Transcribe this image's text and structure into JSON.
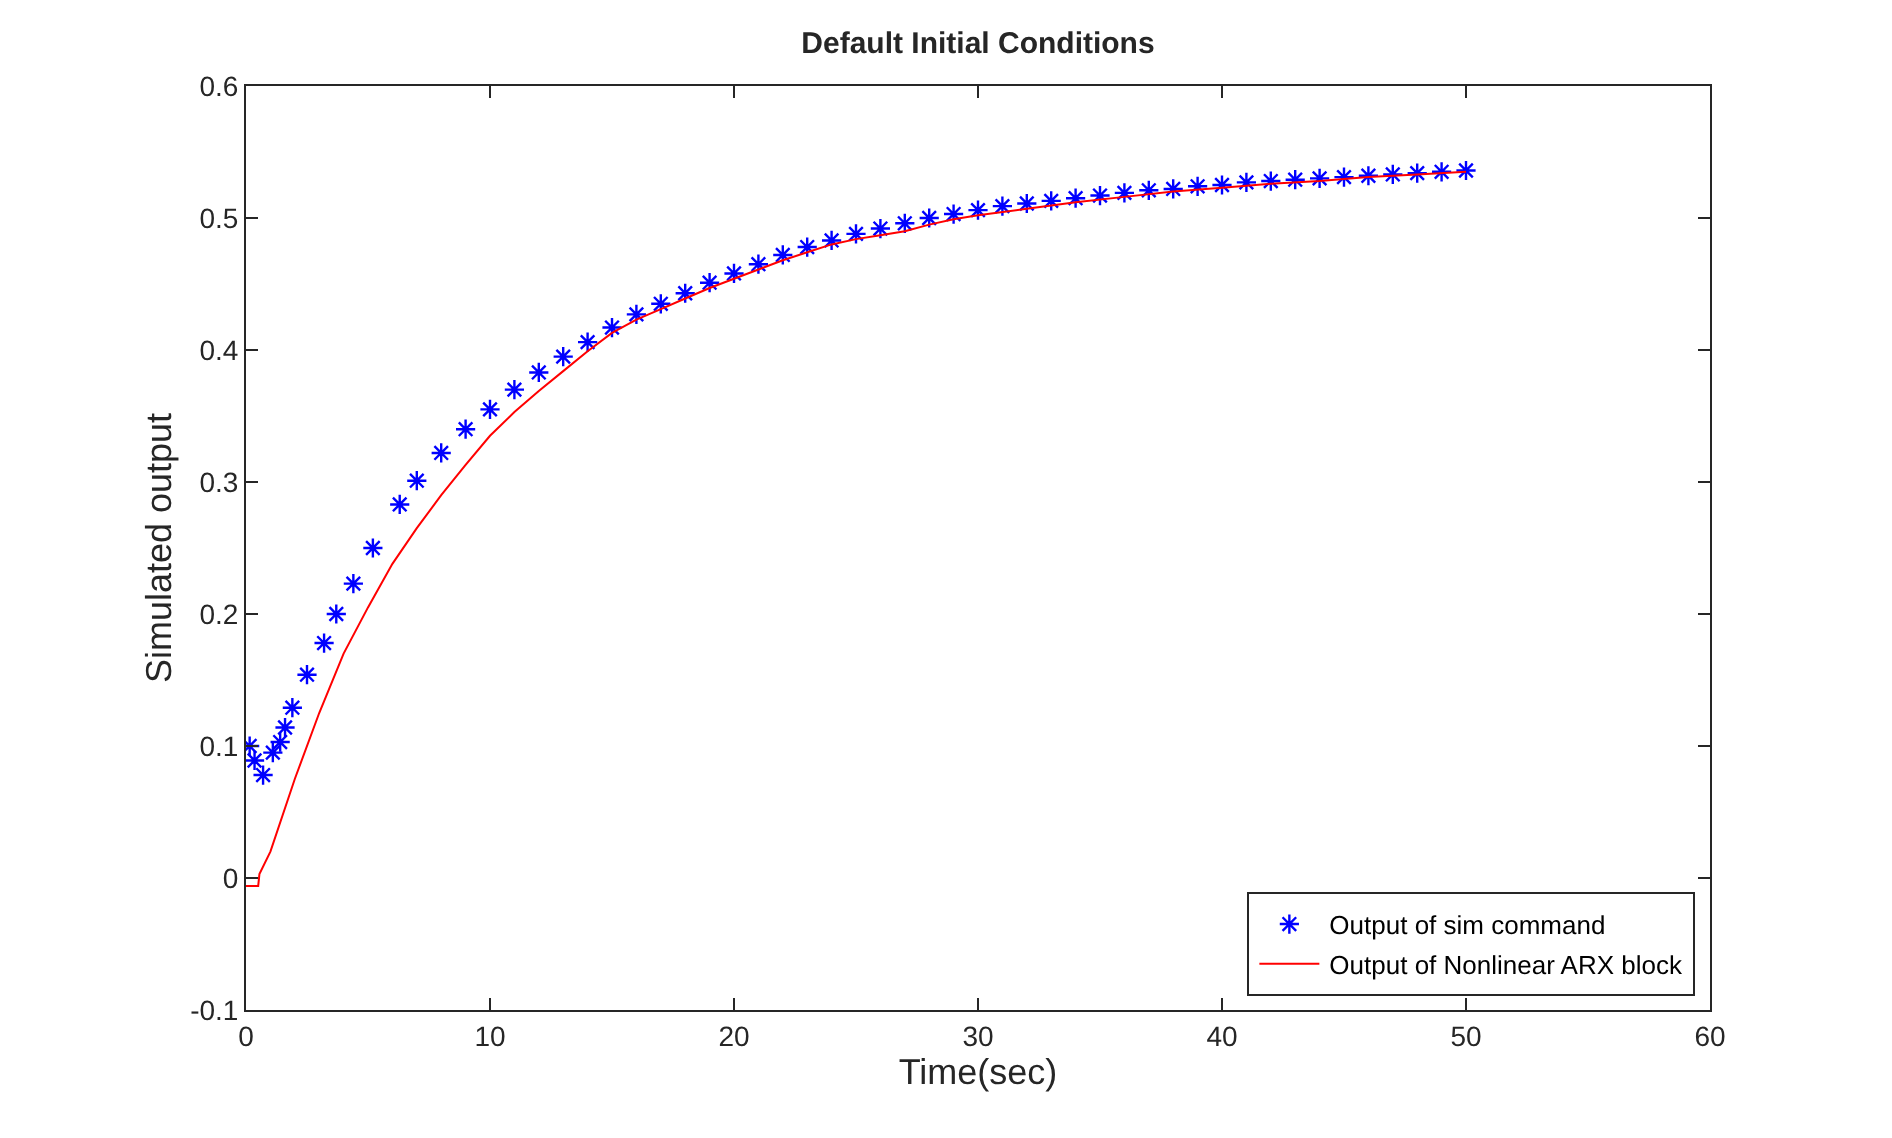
{
  "chart_data": {
    "type": "scatter",
    "title": "Default Initial Conditions",
    "xlabel": "Time(sec)",
    "ylabel": "Simulated output",
    "xlim": [
      0,
      60
    ],
    "xticks": [
      0,
      10,
      20,
      30,
      40,
      50,
      60
    ],
    "ylim": [
      -0.1,
      0.6
    ],
    "yticks": [
      -0.1,
      0,
      0.1,
      0.2,
      0.3,
      0.4,
      0.5,
      0.6
    ],
    "legend": "bottom right",
    "series": [
      {
        "name": "Output of sim command",
        "marker": "cross",
        "color": "#0000ff",
        "x": [
          0.15,
          0.35,
          0.7,
          1.1,
          1.4,
          1.6,
          1.9,
          2.5,
          3.2,
          3.7,
          4.4,
          5.2,
          6.3,
          7,
          8,
          9,
          10,
          11,
          12,
          13,
          14,
          15,
          16,
          17,
          18,
          19,
          20,
          21,
          22,
          23,
          24,
          25,
          26,
          27,
          28,
          29,
          30,
          31,
          32,
          33,
          34,
          35,
          36,
          37,
          38,
          39,
          40,
          41,
          42,
          43,
          44,
          45,
          46,
          47,
          48,
          49,
          50
        ],
        "values": [
          0.1,
          0.089,
          0.078,
          0.095,
          0.103,
          0.114,
          0.129,
          0.154,
          0.178,
          0.2,
          0.223,
          0.25,
          0.283,
          0.301,
          0.322,
          0.34,
          0.355,
          0.37,
          0.383,
          0.395,
          0.406,
          0.417,
          0.427,
          0.435,
          0.443,
          0.451,
          0.458,
          0.465,
          0.472,
          0.478,
          0.483,
          0.488,
          0.492,
          0.496,
          0.5,
          0.503,
          0.506,
          0.509,
          0.511,
          0.513,
          0.515,
          0.517,
          0.519,
          0.521,
          0.522,
          0.524,
          0.525,
          0.527,
          0.528,
          0.529,
          0.53,
          0.531,
          0.532,
          0.533,
          0.534,
          0.535,
          0.536
        ]
      },
      {
        "name": "Output of Nonlinear ARX block",
        "type": "line",
        "line_style": "solid",
        "color": "#ff0000",
        "x": [
          0,
          0.5,
          0.55,
          1,
          2,
          3,
          4,
          5,
          6,
          7,
          8,
          9,
          10,
          11,
          12,
          13,
          14,
          15,
          16,
          17,
          18,
          19,
          20,
          21,
          22,
          23,
          24,
          25,
          26,
          27,
          28,
          29,
          30,
          32,
          34,
          36,
          38,
          40,
          42,
          44,
          46,
          48,
          50
        ],
        "values": [
          -0.006,
          -0.006,
          0.003,
          0.02,
          0.075,
          0.125,
          0.17,
          0.205,
          0.238,
          0.265,
          0.29,
          0.313,
          0.335,
          0.353,
          0.369,
          0.384,
          0.399,
          0.413,
          0.423,
          0.431,
          0.439,
          0.447,
          0.454,
          0.461,
          0.468,
          0.474,
          0.48,
          0.484,
          0.487,
          0.49,
          0.495,
          0.499,
          0.502,
          0.507,
          0.512,
          0.516,
          0.52,
          0.523,
          0.526,
          0.528,
          0.531,
          0.533,
          0.535
        ]
      }
    ]
  }
}
